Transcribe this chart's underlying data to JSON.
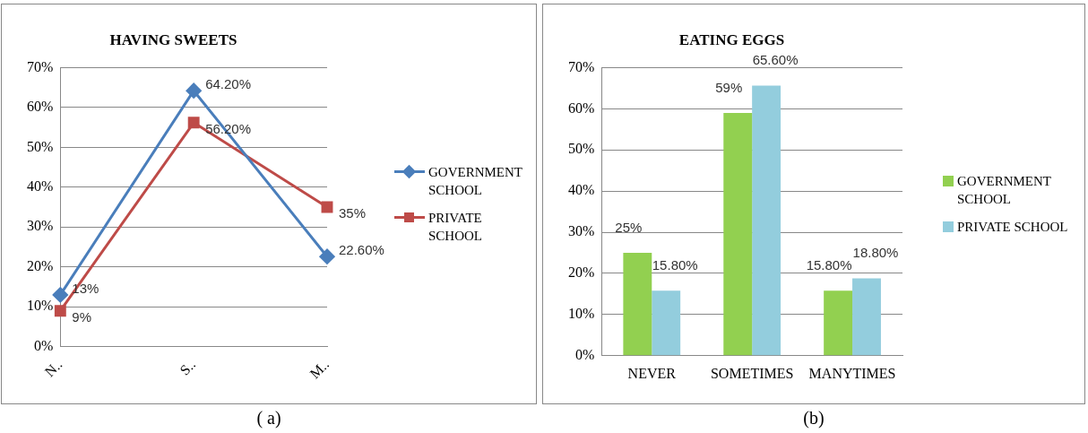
{
  "chart_data": [
    {
      "type": "line",
      "title": "HAVING SWEETS",
      "categories": [
        "N..",
        "S..",
        "M.."
      ],
      "ylim": [
        0,
        70
      ],
      "yticks": [
        {
          "value": 0,
          "label": "0%"
        },
        {
          "value": 10,
          "label": "10%"
        },
        {
          "value": 20,
          "label": "20%"
        },
        {
          "value": 30,
          "label": "30%"
        },
        {
          "value": 40,
          "label": "40%"
        },
        {
          "value": 50,
          "label": "50%"
        },
        {
          "value": 60,
          "label": "60%"
        },
        {
          "value": 70,
          "label": "70%"
        }
      ],
      "grid": "y",
      "legend": "right",
      "annotations": [
        "( a)"
      ],
      "series": [
        {
          "name": "GOVERNMENT SCHOOL",
          "color": "#4a7ebb",
          "marker": "diamond",
          "values": [
            13,
            64.2,
            22.6
          ],
          "value_labels": [
            "13%",
            "64.20%",
            "22.60%"
          ]
        },
        {
          "name": "PRIVATE SCHOOL",
          "color": "#be4b48",
          "marker": "square",
          "values": [
            9,
            56.2,
            35
          ],
          "value_labels": [
            "9%",
            "56.20%",
            "35%"
          ]
        }
      ]
    },
    {
      "type": "bar",
      "title": "EATING EGGS",
      "categories": [
        "NEVER",
        "SOMETIMES",
        "MANYTIMES"
      ],
      "ylim": [
        0,
        70
      ],
      "yticks": [
        {
          "value": 0,
          "label": "0%"
        },
        {
          "value": 10,
          "label": "10%"
        },
        {
          "value": 20,
          "label": "20%"
        },
        {
          "value": 30,
          "label": "30%"
        },
        {
          "value": 40,
          "label": "40%"
        },
        {
          "value": 50,
          "label": "50%"
        },
        {
          "value": 60,
          "label": "60%"
        },
        {
          "value": 70,
          "label": "70%"
        }
      ],
      "grid": "y",
      "legend": "right",
      "annotations": [
        "(b)"
      ],
      "series": [
        {
          "name": "GOVERNMENT SCHOOL",
          "color": "#92d050",
          "values": [
            25,
            59,
            15.8
          ],
          "value_labels": [
            "25%",
            "59%",
            "15.80%"
          ]
        },
        {
          "name": "PRIVATE SCHOOL",
          "color": "#93cddd",
          "values": [
            15.8,
            65.6,
            18.8
          ],
          "value_labels": [
            "15.80%",
            "65.60%",
            "18.80%"
          ]
        }
      ]
    }
  ]
}
